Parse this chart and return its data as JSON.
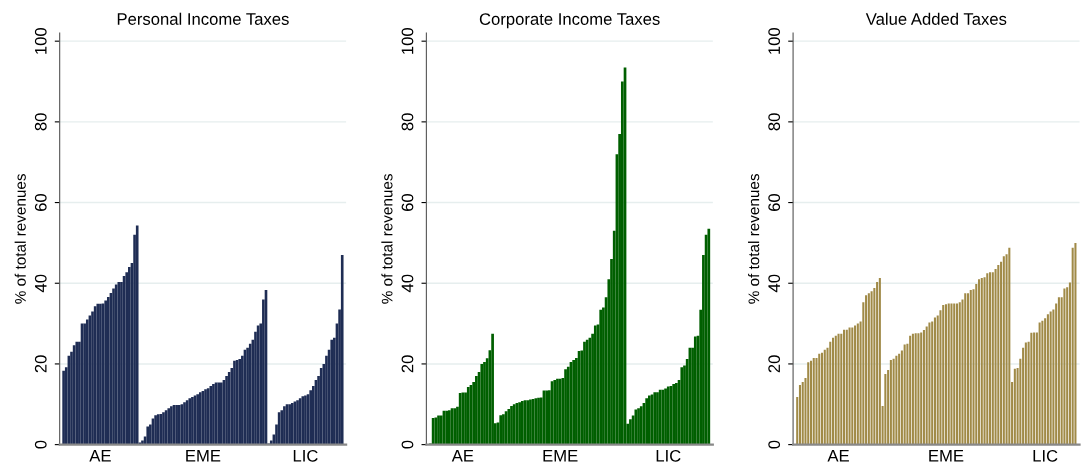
{
  "chart_data": [
    {
      "type": "bar",
      "title": "Personal Income Taxes",
      "ylabel": "% of total revenues",
      "ylim": [
        0,
        102
      ],
      "yticks": [
        0,
        20,
        40,
        60,
        80,
        100
      ],
      "grid": "y",
      "color": "#1f2d54",
      "categories": [
        null,
        null,
        null,
        null,
        null,
        null,
        null,
        null,
        null,
        null,
        null,
        null,
        null,
        null,
        "AE",
        null,
        null,
        null,
        null,
        null,
        null,
        null,
        null,
        null,
        null,
        null,
        null,
        null,
        null,
        null,
        null,
        null,
        null,
        null,
        null,
        null,
        null,
        null,
        null,
        null,
        null,
        null,
        null,
        null,
        null,
        null,
        null,
        null,
        null,
        null,
        null,
        null,
        null,
        "EME",
        null,
        null,
        null,
        null,
        null,
        null,
        null,
        null,
        null,
        null,
        null,
        null,
        null,
        null,
        null,
        null,
        null,
        null,
        null,
        null,
        null,
        null,
        null,
        null,
        null,
        null,
        null,
        null,
        null,
        null,
        null,
        null,
        null,
        null,
        null,
        null,
        null,
        null,
        "LIC",
        null,
        null,
        null,
        null,
        null,
        null,
        null,
        null,
        null,
        null,
        null,
        null,
        null,
        null
      ],
      "values": [
        18.3,
        19.2,
        22,
        23,
        24.6,
        25.5,
        25.5,
        30,
        30,
        31,
        32,
        33,
        34.3,
        34.9,
        34.9,
        35,
        35.7,
        36.6,
        37.6,
        38.7,
        39.7,
        40.3,
        40.3,
        41.8,
        42.7,
        44,
        45,
        52,
        54.3,
        0.5,
        1,
        2,
        4.5,
        5,
        6.5,
        7.3,
        7.5,
        7.6,
        8,
        8.5,
        9,
        9.5,
        9.8,
        9.8,
        9.8,
        10,
        10.5,
        11,
        11.5,
        11.8,
        12.2,
        12.5,
        13,
        13.3,
        13.7,
        14,
        14.5,
        15,
        15.4,
        15.4,
        15.4,
        16,
        17,
        18,
        19,
        20.8,
        21,
        21.2,
        22,
        23.5,
        24,
        25,
        26,
        28,
        29.5,
        30,
        36,
        38.3,
        0.3,
        1,
        2.5,
        5,
        8,
        8.5,
        9.5,
        10,
        10,
        10.3,
        10.7,
        11,
        11.5,
        12,
        12.2,
        12.5,
        13.5,
        14.5,
        16,
        17,
        19,
        20,
        22,
        23.5,
        26,
        26.5,
        30,
        33.5,
        47
      ]
    },
    {
      "type": "bar",
      "title": "Corporate Income Taxes",
      "ylabel": "% of total revenues",
      "ylim": [
        0,
        102
      ],
      "yticks": [
        0,
        20,
        40,
        60,
        80,
        100
      ],
      "grid": "y",
      "color": "#005f00",
      "categories": [
        null,
        null,
        null,
        null,
        null,
        null,
        null,
        null,
        null,
        null,
        null,
        null,
        "AE",
        null,
        null,
        null,
        null,
        null,
        null,
        null,
        null,
        null,
        null,
        null,
        null,
        null,
        null,
        null,
        null,
        null,
        null,
        null,
        null,
        null,
        null,
        null,
        null,
        null,
        null,
        null,
        null,
        null,
        null,
        null,
        null,
        null,
        null,
        null,
        "EME",
        null,
        null,
        null,
        null,
        null,
        null,
        null,
        null,
        null,
        null,
        null,
        null,
        null,
        null,
        null,
        null,
        null,
        null,
        null,
        null,
        null,
        null,
        null,
        null,
        null,
        null,
        null,
        null,
        null,
        null,
        null,
        null,
        null,
        null,
        null,
        null,
        null,
        null,
        null,
        "LIC",
        null,
        null,
        null,
        null,
        null,
        null,
        null,
        null,
        null,
        null,
        null,
        null,
        null,
        null,
        null
      ],
      "values": [
        0.3,
        6.6,
        6.7,
        7.2,
        7.2,
        8.4,
        8.4,
        8.5,
        9,
        9,
        9.4,
        12.8,
        12.9,
        12.9,
        14.3,
        14.8,
        15.5,
        17,
        18,
        20,
        20.5,
        21.4,
        23.4,
        27.5,
        5.3,
        5.5,
        7.3,
        7.5,
        8.3,
        8.8,
        9.6,
        10,
        10.3,
        10.5,
        10.8,
        11,
        11,
        11.2,
        11.3,
        11.5,
        11.6,
        11.7,
        13.4,
        13.4,
        13.5,
        15.7,
        16,
        16.3,
        16.3,
        16.5,
        18.7,
        19.3,
        20.5,
        21,
        21.5,
        23.2,
        23.3,
        25.5,
        26,
        26.5,
        27.5,
        29.5,
        29.8,
        33.4,
        34,
        36.5,
        41,
        46,
        53,
        72,
        77,
        90,
        93.5,
        5.2,
        6.3,
        7.2,
        8.7,
        9,
        9.5,
        10.3,
        11.5,
        12.2,
        12.4,
        13,
        13,
        13.6,
        13.6,
        13.9,
        14.4,
        14.5,
        15,
        15.3,
        16,
        19.2,
        19.6,
        21.2,
        24,
        24,
        26.8,
        27,
        33.4,
        47,
        52,
        53.5
      ]
    },
    {
      "type": "bar",
      "title": "Value Added Taxes",
      "ylabel": "% of total revenues",
      "ylim": [
        0,
        102
      ],
      "yticks": [
        0,
        20,
        40,
        60,
        80,
        100
      ],
      "grid": "y",
      "color": "#a08a47",
      "categories": [
        null,
        null,
        null,
        null,
        null,
        null,
        null,
        null,
        null,
        null,
        null,
        null,
        null,
        null,
        null,
        "AE",
        null,
        null,
        null,
        null,
        null,
        null,
        null,
        null,
        null,
        null,
        null,
        null,
        null,
        null,
        null,
        null,
        null,
        null,
        null,
        null,
        null,
        null,
        null,
        null,
        null,
        null,
        null,
        null,
        null,
        null,
        null,
        null,
        null,
        null,
        null,
        null,
        null,
        null,
        "EME",
        null,
        null,
        null,
        null,
        null,
        null,
        null,
        null,
        null,
        null,
        null,
        null,
        null,
        null,
        null,
        null,
        null,
        null,
        null,
        null,
        null,
        null,
        null,
        null,
        null,
        null,
        null,
        null,
        null,
        null,
        null,
        null,
        null,
        null,
        null,
        "LIC",
        null,
        null,
        null,
        null,
        null,
        null,
        null,
        null,
        null,
        null,
        null
      ],
      "values": [
        11.8,
        14.8,
        15.5,
        16.5,
        20.4,
        20.8,
        21.5,
        21.5,
        22.5,
        22.8,
        23.5,
        24,
        25.5,
        26.5,
        27,
        27.5,
        27.5,
        28.5,
        28.5,
        29,
        29,
        29.5,
        30,
        30.5,
        35.3,
        37,
        37.5,
        38,
        38.8,
        40.3,
        41.3,
        9.6,
        17.5,
        18.5,
        21,
        21.3,
        22,
        22.5,
        23.3,
        24.8,
        25,
        27,
        27.5,
        27.6,
        27.6,
        27.8,
        28.4,
        29.3,
        30.3,
        30.5,
        31.5,
        32,
        33.3,
        34.6,
        34.8,
        35,
        35,
        35,
        35,
        35.3,
        36,
        37.5,
        37.5,
        38.3,
        38.5,
        39.8,
        41,
        41.3,
        41.5,
        42.5,
        42.7,
        42.7,
        43.5,
        44.5,
        45.3,
        46.7,
        47.2,
        48.8,
        15.5,
        18.8,
        19,
        21.3,
        24,
        25.3,
        25.5,
        27.7,
        27.8,
        27.8,
        30.3,
        30.7,
        31.3,
        32.3,
        33,
        33.5,
        35,
        36.5,
        36.5,
        38.7,
        39,
        40.2,
        48.8,
        50
      ]
    }
  ]
}
